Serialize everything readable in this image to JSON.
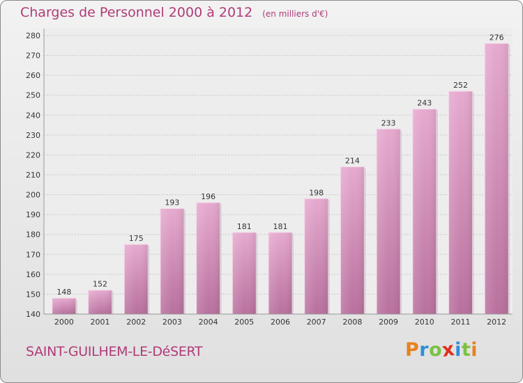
{
  "header": {
    "title": "Charges de Personnel 2000 à 2012",
    "subtitle": "(en milliers d'€)"
  },
  "footer": {
    "commune": "SAINT-GUILHEM-LE-DéSERT",
    "logo_letters": [
      "P",
      "r",
      "o",
      "x",
      "i",
      "t",
      "i"
    ],
    "logo_colors": [
      "#e8821e",
      "#2f8fd8",
      "#7cc242",
      "#e0301e",
      "#2f8fd8",
      "#7cc242",
      "#e8821e"
    ]
  },
  "colors": {
    "bar_top": "#e6a9cf",
    "bar_bottom": "#b8709d",
    "title": "#b03a78"
  },
  "chart_data": {
    "type": "bar",
    "categories": [
      "2000",
      "2001",
      "2002",
      "2003",
      "2004",
      "2005",
      "2006",
      "2007",
      "2008",
      "2009",
      "2010",
      "2011",
      "2012"
    ],
    "values": [
      148,
      152,
      175,
      193,
      196,
      181,
      181,
      198,
      214,
      233,
      243,
      252,
      276
    ],
    "ylim": [
      140,
      280
    ],
    "yticks": [
      140,
      150,
      160,
      170,
      180,
      190,
      200,
      210,
      220,
      230,
      240,
      250,
      260,
      270,
      280
    ],
    "grid": true
  }
}
